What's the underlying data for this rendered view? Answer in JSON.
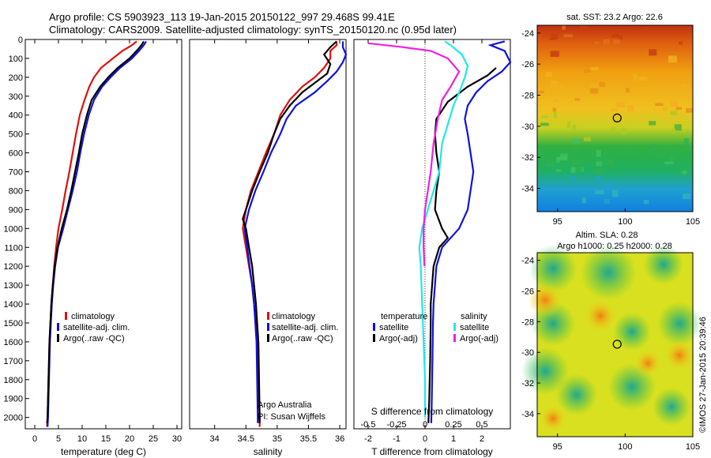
{
  "title": {
    "line1": "Argo profile: CS 5903923_113 19-Jan-2015 20150122_997 29.468S 99.41E",
    "line2": "Climatology: CARS2009. Satellite-adjusted climatology: synTS_20150120.nc (0.95d later)"
  },
  "side_text": "©IMOS 27-Jan-2015 20:39:46",
  "colors": {
    "climatology": "#e01010",
    "satellite": "#1010e0",
    "argo": "#000000",
    "sat_salinity": "#20e8e8",
    "argo_salinity_diff": "#f020e0"
  },
  "chart_data": [
    {
      "type": "line",
      "name": "temperature",
      "xlabel": "temperature (deg C)",
      "xlim": [
        -2,
        31
      ],
      "ylim": [
        2060,
        0
      ],
      "xticks": [
        0,
        5,
        10,
        15,
        20,
        25,
        30
      ],
      "yticks": [
        0,
        100,
        200,
        300,
        400,
        500,
        600,
        700,
        800,
        900,
        1000,
        1100,
        1200,
        1300,
        1400,
        1500,
        1600,
        1700,
        1800,
        1900,
        2000
      ],
      "legend": [
        "climatology",
        "satellite-adj. clim.",
        "Argo(..raw -QC)"
      ],
      "series": [
        {
          "name": "climatology",
          "color": "#e01010",
          "points": [
            [
              21.5,
              10
            ],
            [
              20.5,
              30
            ],
            [
              18.5,
              60
            ],
            [
              16.5,
              100
            ],
            [
              14,
              150
            ],
            [
              12.5,
              200
            ],
            [
              11.5,
              250
            ],
            [
              10.5,
              320
            ],
            [
              9.5,
              400
            ],
            [
              8.7,
              500
            ],
            [
              8,
              600
            ],
            [
              7.3,
              700
            ],
            [
              6.5,
              800
            ],
            [
              5.8,
              900
            ],
            [
              5,
              1000
            ],
            [
              4.5,
              1100
            ],
            [
              4.1,
              1200
            ],
            [
              3.8,
              1300
            ],
            [
              3.5,
              1400
            ],
            [
              3.3,
              1500
            ],
            [
              3.1,
              1600
            ],
            [
              2.9,
              1800
            ],
            [
              2.7,
              2000
            ],
            [
              2.6,
              2050
            ]
          ]
        },
        {
          "name": "satellite-adj. clim.",
          "color": "#1010e0",
          "points": [
            [
              23.5,
              10
            ],
            [
              23,
              30
            ],
            [
              22,
              60
            ],
            [
              20.5,
              100
            ],
            [
              18,
              150
            ],
            [
              16,
              200
            ],
            [
              14.2,
              250
            ],
            [
              12.5,
              320
            ],
            [
              11.4,
              400
            ],
            [
              10.4,
              500
            ],
            [
              9.6,
              600
            ],
            [
              8.9,
              700
            ],
            [
              8,
              800
            ],
            [
              7,
              900
            ],
            [
              6,
              1000
            ],
            [
              4.9,
              1100
            ],
            [
              4.3,
              1200
            ],
            [
              3.9,
              1300
            ],
            [
              3.6,
              1400
            ],
            [
              3.4,
              1500
            ],
            [
              3.2,
              1600
            ],
            [
              3,
              1800
            ],
            [
              2.8,
              2000
            ],
            [
              2.7,
              2050
            ]
          ]
        },
        {
          "name": "Argo(..raw -QC)",
          "color": "#000000",
          "points": [
            [
              23,
              10
            ],
            [
              22.5,
              30
            ],
            [
              21.5,
              60
            ],
            [
              20,
              100
            ],
            [
              17.5,
              150
            ],
            [
              15.5,
              200
            ],
            [
              13.8,
              250
            ],
            [
              12,
              320
            ],
            [
              11,
              400
            ],
            [
              10,
              500
            ],
            [
              9.3,
              600
            ],
            [
              8.5,
              700
            ],
            [
              7.7,
              800
            ],
            [
              6.8,
              900
            ],
            [
              5.7,
              1000
            ],
            [
              4.8,
              1100
            ],
            [
              4.2,
              1200
            ],
            [
              3.8,
              1300
            ],
            [
              3.5,
              1400
            ],
            [
              3.3,
              1500
            ],
            [
              3.1,
              1600
            ],
            [
              2.9,
              1800
            ],
            [
              2.7,
              2000
            ],
            [
              2.6,
              2030
            ]
          ]
        }
      ]
    },
    {
      "type": "line",
      "name": "salinity",
      "xlabel": "salinity",
      "xlim": [
        33.6,
        36.1
      ],
      "ylim": [
        2060,
        0
      ],
      "xticks": [
        34,
        34.5,
        35,
        35.5,
        36
      ],
      "legend": [
        "climatology",
        "satellite-adj. clim.",
        "Argo(..raw -QC)"
      ],
      "annotation": [
        "Argo Australia",
        "PI: Susan Wijffels"
      ],
      "series": [
        {
          "name": "climatology",
          "color": "#e01010",
          "points": [
            [
              35.95,
              10
            ],
            [
              35.95,
              30
            ],
            [
              35.85,
              60
            ],
            [
              35.85,
              100
            ],
            [
              35.75,
              150
            ],
            [
              35.6,
              200
            ],
            [
              35.4,
              250
            ],
            [
              35.2,
              320
            ],
            [
              35.05,
              400
            ],
            [
              34.95,
              500
            ],
            [
              34.82,
              600
            ],
            [
              34.7,
              700
            ],
            [
              34.58,
              800
            ],
            [
              34.5,
              900
            ],
            [
              34.45,
              1000
            ],
            [
              34.5,
              1100
            ],
            [
              34.55,
              1200
            ],
            [
              34.6,
              1300
            ],
            [
              34.63,
              1400
            ],
            [
              34.66,
              1500
            ],
            [
              34.68,
              1600
            ],
            [
              34.7,
              1800
            ],
            [
              34.72,
              2000
            ],
            [
              34.72,
              2050
            ]
          ]
        },
        {
          "name": "satellite-adj. clim.",
          "color": "#1010e0",
          "points": [
            [
              36.05,
              10
            ],
            [
              36.05,
              40
            ],
            [
              36.1,
              80
            ],
            [
              36.05,
              120
            ],
            [
              35.95,
              170
            ],
            [
              35.8,
              220
            ],
            [
              35.6,
              280
            ],
            [
              35.3,
              350
            ],
            [
              35.15,
              420
            ],
            [
              35.05,
              500
            ],
            [
              34.9,
              600
            ],
            [
              34.78,
              700
            ],
            [
              34.65,
              800
            ],
            [
              34.55,
              900
            ],
            [
              34.48,
              1000
            ],
            [
              34.52,
              1100
            ],
            [
              34.56,
              1200
            ],
            [
              34.6,
              1300
            ],
            [
              34.63,
              1400
            ],
            [
              34.65,
              1500
            ],
            [
              34.67,
              1600
            ],
            [
              34.68,
              1800
            ],
            [
              34.69,
              2000
            ],
            [
              34.69,
              2030
            ]
          ]
        },
        {
          "name": "Argo(..raw -QC)",
          "color": "#000000",
          "points": [
            [
              35.95,
              10
            ],
            [
              35.85,
              40
            ],
            [
              35.75,
              80
            ],
            [
              35.85,
              130
            ],
            [
              35.8,
              180
            ],
            [
              35.6,
              230
            ],
            [
              35.4,
              280
            ],
            [
              35.2,
              350
            ],
            [
              35.05,
              420
            ],
            [
              34.95,
              500
            ],
            [
              34.85,
              600
            ],
            [
              34.72,
              700
            ],
            [
              34.6,
              800
            ],
            [
              34.5,
              900
            ],
            [
              34.45,
              950
            ],
            [
              34.5,
              1000
            ],
            [
              34.55,
              1100
            ],
            [
              34.6,
              1200
            ],
            [
              34.63,
              1300
            ],
            [
              34.66,
              1400
            ],
            [
              34.68,
              1500
            ],
            [
              34.7,
              1600
            ],
            [
              34.71,
              1800
            ],
            [
              34.72,
              2000
            ],
            [
              34.72,
              2030
            ]
          ]
        }
      ]
    },
    {
      "type": "line",
      "name": "difference",
      "xlabel": "T difference from climatology",
      "xlabel_top": "S difference from climatology",
      "xlim": [
        -2.5,
        3
      ],
      "ylim": [
        2060,
        0
      ],
      "xticks": [
        -2,
        -1,
        0,
        1,
        2
      ],
      "xticks_top": [
        {
          "label": "-0.5",
          "t": -2
        },
        {
          "label": "-0.25",
          "t": -1
        },
        {
          "label": "0",
          "t": 0
        },
        {
          "label": "0.25",
          "t": 1
        },
        {
          "label": "0.5",
          "t": 2
        }
      ],
      "legend_left_title": "temperature",
      "legend_right_title": "salinity",
      "legend_left": [
        "satellite",
        "Argo(-adj)"
      ],
      "legend_right": [
        "satellite",
        "Argo(-adj)"
      ],
      "series": [
        {
          "name": "temperature satellite",
          "color": "#1010e0",
          "points": [
            [
              2.8,
              10
            ],
            [
              2.3,
              30
            ],
            [
              2.8,
              60
            ],
            [
              3,
              120
            ],
            [
              2.7,
              170
            ],
            [
              2.2,
              220
            ],
            [
              1.8,
              280
            ],
            [
              1.5,
              350
            ],
            [
              1.4,
              420
            ],
            [
              1.5,
              500
            ],
            [
              1.6,
              600
            ],
            [
              1.7,
              700
            ],
            [
              1.6,
              800
            ],
            [
              1.5,
              900
            ],
            [
              1.2,
              1000
            ],
            [
              0.6,
              1100
            ],
            [
              0.4,
              1200
            ],
            [
              0.35,
              1300
            ],
            [
              0.3,
              1400
            ],
            [
              0.28,
              1500
            ],
            [
              0.26,
              1700
            ],
            [
              0.24,
              1900
            ],
            [
              0.22,
              2030
            ]
          ]
        },
        {
          "name": "temperature Argo(-adj)",
          "color": "#000000",
          "points": [
            [
              2.5,
              150
            ],
            [
              2.2,
              190
            ],
            [
              1.5,
              250
            ],
            [
              0.8,
              330
            ],
            [
              0.4,
              420
            ],
            [
              0.35,
              500
            ],
            [
              0.4,
              600
            ],
            [
              0.5,
              700
            ],
            [
              0.4,
              800
            ],
            [
              0.35,
              900
            ],
            [
              0.6,
              1000
            ],
            [
              0.8,
              1050
            ],
            [
              0.5,
              1100
            ],
            [
              0.3,
              1200
            ],
            [
              0.25,
              1300
            ],
            [
              0.2,
              1400
            ],
            [
              0.2,
              1500
            ],
            [
              0.18,
              1700
            ],
            [
              0.15,
              1900
            ],
            [
              0.12,
              2030
            ]
          ]
        },
        {
          "name": "salinity satellite",
          "color": "#20e8e8",
          "points": [
            [
              0.7,
              10
            ],
            [
              0.9,
              30
            ],
            [
              1.3,
              80
            ],
            [
              1.5,
              140
            ],
            [
              1.4,
              200
            ],
            [
              1.2,
              280
            ],
            [
              1.0,
              350
            ],
            [
              0.8,
              450
            ],
            [
              0.6,
              550
            ],
            [
              0.5,
              700
            ],
            [
              0.3,
              800
            ],
            [
              0.1,
              900
            ],
            [
              -0.1,
              1000
            ],
            [
              -0.2,
              1100
            ],
            [
              -0.15,
              1200
            ],
            [
              -0.1,
              1400
            ],
            [
              -0.05,
              1600
            ],
            [
              0,
              1800
            ],
            [
              0,
              2000
            ]
          ]
        },
        {
          "name": "salinity Argo(-adj)",
          "color": "#f020e0",
          "points": [
            [
              -2,
              20
            ],
            [
              -0.8,
              40
            ],
            [
              0.2,
              60
            ],
            [
              0.8,
              100
            ],
            [
              1.2,
              170
            ],
            [
              0.9,
              250
            ],
            [
              0.6,
              320
            ],
            [
              0.45,
              420
            ],
            [
              0.3,
              550
            ],
            [
              0.2,
              700
            ],
            [
              0.1,
              800
            ],
            [
              0,
              900
            ],
            [
              -0.05,
              1000
            ],
            [
              -0.05,
              1100
            ],
            [
              -0.02,
              1200
            ]
          ]
        }
      ]
    },
    {
      "type": "heatmap",
      "name": "sst-map",
      "title": "sat. SST: 23.2 Argo: 22.6",
      "xticks": [
        95,
        100,
        105
      ],
      "yticks": [
        -24,
        -26,
        -28,
        -30,
        -32,
        -34
      ],
      "xlim": [
        93.5,
        105
      ],
      "ylim": [
        -35.5,
        -23.5
      ],
      "marker": {
        "lon": 99.41,
        "lat": -29.47
      }
    },
    {
      "type": "heatmap",
      "name": "sla-map",
      "title": "Altim. SLA: 0.28",
      "subtitle": "Argo h1000: 0.25 h2000: 0.28",
      "xticks": [
        95,
        100,
        105
      ],
      "yticks": [
        -24,
        -26,
        -28,
        -30,
        -32,
        -34
      ],
      "xlim": [
        93.5,
        105
      ],
      "ylim": [
        -35.5,
        -23.5
      ],
      "marker": {
        "lon": 99.41,
        "lat": -29.47
      }
    }
  ]
}
